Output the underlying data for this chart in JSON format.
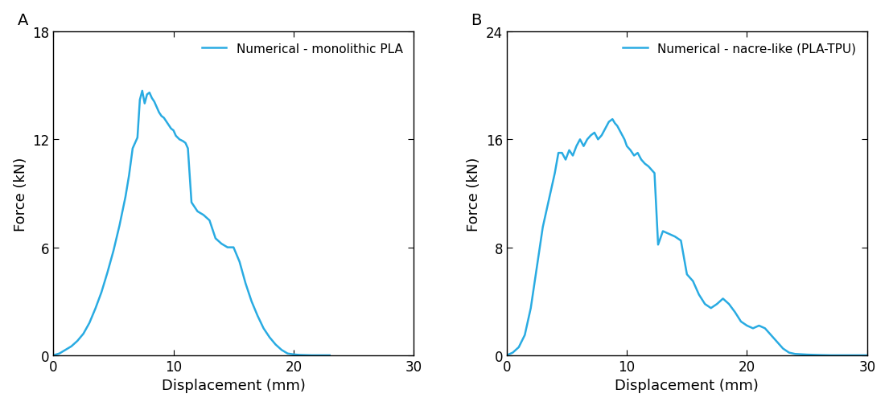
{
  "line_color": "#29ABE2",
  "line_width": 1.8,
  "background_color": "#ffffff",
  "panel_A": {
    "label": "Numerical - monolithic PLA",
    "xlabel": "Displacement (mm)",
    "ylabel": "Force (kN)",
    "xlim": [
      0,
      30
    ],
    "ylim": [
      0,
      18
    ],
    "xticks": [
      0,
      10,
      20,
      30
    ],
    "yticks": [
      0,
      6,
      12,
      18
    ],
    "x": [
      0,
      0.5,
      1.0,
      1.5,
      2.0,
      2.5,
      3.0,
      3.5,
      4.0,
      4.5,
      5.0,
      5.5,
      6.0,
      6.3,
      6.6,
      7.0,
      7.2,
      7.4,
      7.6,
      7.8,
      8.0,
      8.2,
      8.4,
      8.6,
      8.8,
      9.0,
      9.2,
      9.4,
      9.6,
      9.8,
      10.0,
      10.2,
      10.5,
      10.8,
      11.0,
      11.2,
      11.5,
      12.0,
      12.5,
      13.0,
      13.5,
      14.0,
      14.5,
      15.0,
      15.5,
      16.0,
      16.5,
      17.0,
      17.5,
      18.0,
      18.5,
      19.0,
      19.5,
      20.0,
      20.5,
      21.0,
      21.5,
      22.0,
      22.5,
      23.0
    ],
    "y": [
      0,
      0.1,
      0.3,
      0.5,
      0.8,
      1.2,
      1.8,
      2.6,
      3.5,
      4.6,
      5.8,
      7.2,
      8.8,
      10.0,
      11.5,
      12.1,
      14.2,
      14.7,
      14.0,
      14.5,
      14.6,
      14.3,
      14.1,
      13.8,
      13.5,
      13.3,
      13.2,
      13.0,
      12.8,
      12.6,
      12.5,
      12.2,
      12.0,
      11.9,
      11.8,
      11.5,
      8.5,
      8.0,
      7.8,
      7.5,
      6.5,
      6.2,
      6.0,
      6.0,
      5.2,
      4.0,
      3.0,
      2.2,
      1.5,
      1.0,
      0.6,
      0.3,
      0.1,
      0.05,
      0.02,
      0.01,
      0.0,
      0.0,
      0.0,
      0.0
    ]
  },
  "panel_B": {
    "label": "Numerical - nacre-like (PLA-TPU)",
    "xlabel": "Displacement (mm)",
    "ylabel": "Force (kN)",
    "xlim": [
      0,
      30
    ],
    "ylim": [
      0,
      24
    ],
    "xticks": [
      0,
      10,
      20,
      30
    ],
    "yticks": [
      0,
      8,
      16,
      24
    ],
    "x": [
      0,
      0.5,
      1.0,
      1.5,
      2.0,
      2.5,
      3.0,
      3.5,
      4.0,
      4.3,
      4.6,
      4.9,
      5.2,
      5.5,
      5.8,
      6.1,
      6.4,
      6.7,
      7.0,
      7.3,
      7.6,
      7.9,
      8.2,
      8.5,
      8.8,
      9.0,
      9.2,
      9.5,
      9.8,
      10.0,
      10.3,
      10.6,
      10.9,
      11.2,
      11.5,
      11.8,
      12.0,
      12.3,
      12.6,
      13.0,
      13.5,
      14.0,
      14.5,
      15.0,
      15.5,
      16.0,
      16.5,
      17.0,
      17.5,
      18.0,
      18.5,
      19.0,
      19.5,
      20.0,
      20.5,
      21.0,
      21.5,
      22.0,
      22.5,
      23.0,
      23.5,
      24.0,
      25.0,
      26.0,
      27.0,
      28.0,
      29.0,
      30.0
    ],
    "y": [
      0,
      0.2,
      0.6,
      1.5,
      3.5,
      6.5,
      9.5,
      11.5,
      13.5,
      15.0,
      15.0,
      14.5,
      15.2,
      14.8,
      15.5,
      16.0,
      15.5,
      16.0,
      16.3,
      16.5,
      16.0,
      16.3,
      16.8,
      17.3,
      17.5,
      17.2,
      17.0,
      16.5,
      16.0,
      15.5,
      15.2,
      14.8,
      15.0,
      14.5,
      14.2,
      14.0,
      13.8,
      13.5,
      8.2,
      9.2,
      9.0,
      8.8,
      8.5,
      6.0,
      5.5,
      4.5,
      3.8,
      3.5,
      3.8,
      4.2,
      3.8,
      3.2,
      2.5,
      2.2,
      2.0,
      2.2,
      2.0,
      1.5,
      1.0,
      0.5,
      0.2,
      0.1,
      0.05,
      0.02,
      0.0,
      0.0,
      0.0,
      0.0
    ]
  }
}
